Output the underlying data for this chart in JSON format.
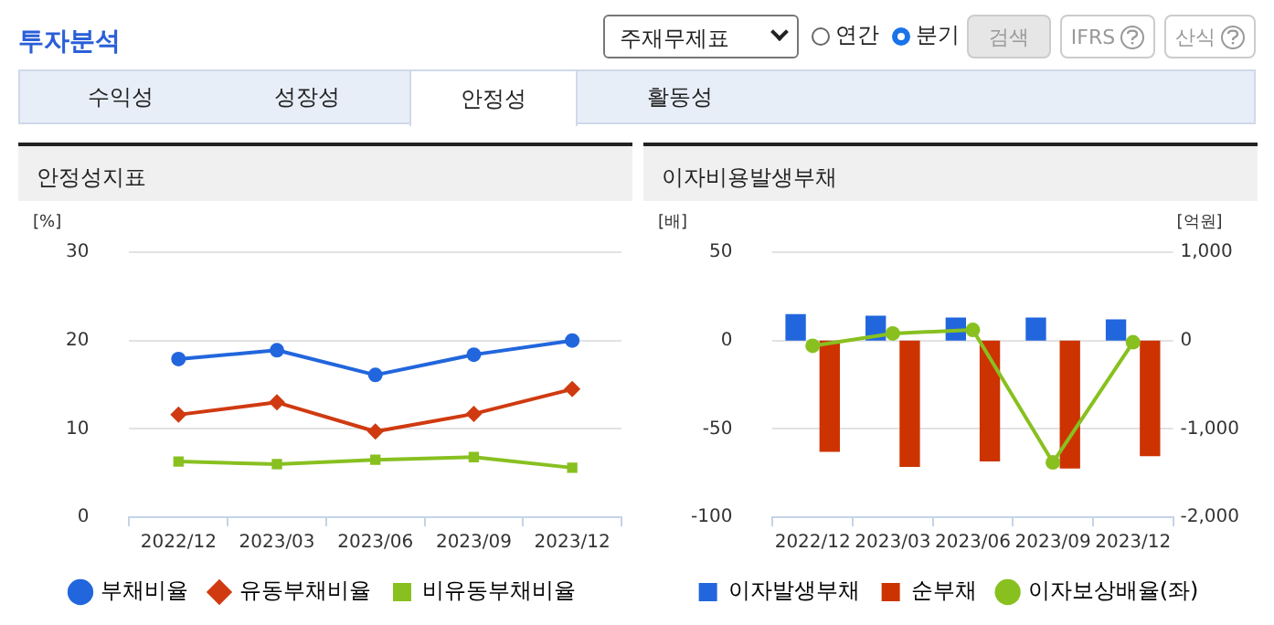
{
  "chart_data": [
    {
      "type": "other",
      "title": "투자분석",
      "annotations": [
        "주재무제표",
        "연간",
        "분기",
        "검색",
        "IFRS",
        "산식",
        "수익성",
        "성장성",
        "안정성",
        "활동성"
      ]
    },
    {
      "type": "line",
      "title": "안정성지표",
      "ylabel": "[%]",
      "categories": [
        "2022/12",
        "2023/03",
        "2023/06",
        "2023/09",
        "2023/12"
      ],
      "ylim": [
        0,
        30
      ],
      "yticks": [
        0,
        10,
        20,
        30
      ],
      "grid": "y",
      "legend": "bottom",
      "series": [
        {
          "name": "부채비율",
          "color": "#2266dd",
          "marker": "circle",
          "values": [
            17.9,
            18.9,
            16.1,
            18.4,
            20.0
          ]
        },
        {
          "name": "유동부채비율",
          "color": "#d03a10",
          "marker": "diamond",
          "values": [
            11.6,
            13.0,
            9.7,
            11.7,
            14.5
          ]
        },
        {
          "name": "비유동부채비율",
          "color": "#88c020",
          "marker": "square",
          "values": [
            6.3,
            6.0,
            6.5,
            6.8,
            5.6
          ]
        }
      ]
    },
    {
      "type": "bar",
      "title": "이자비용발생부채",
      "ylabel": "[배]",
      "y2label": "[억원]",
      "categories": [
        "2022/12",
        "2023/03",
        "2023/06",
        "2023/09",
        "2023/12"
      ],
      "ylim": [
        -100,
        50
      ],
      "yticks": [
        -100,
        -50,
        0,
        50
      ],
      "y2lim": [
        -2000,
        1000
      ],
      "y2ticks": [
        {
          "value": -2000,
          "label": "-2,000"
        },
        {
          "value": -1000,
          "label": "-1,000"
        },
        0,
        {
          "value": 1000,
          "label": "1,000"
        }
      ],
      "grid": "y",
      "legend": "bottom",
      "series": [
        {
          "name": "이자발생부채",
          "color": "#2266dd",
          "axis": "y2",
          "values": [
            300,
            280,
            260,
            260,
            240
          ]
        },
        {
          "name": "순부채",
          "color": "#cc3300",
          "axis": "y2",
          "values": [
            -1260,
            -1430,
            -1370,
            -1450,
            -1310
          ]
        },
        {
          "name": "이자보상배율(좌)",
          "type": "line",
          "color": "#88c020",
          "marker": "circle",
          "values": [
            -3,
            4,
            6,
            -69,
            -1
          ]
        }
      ]
    }
  ]
}
